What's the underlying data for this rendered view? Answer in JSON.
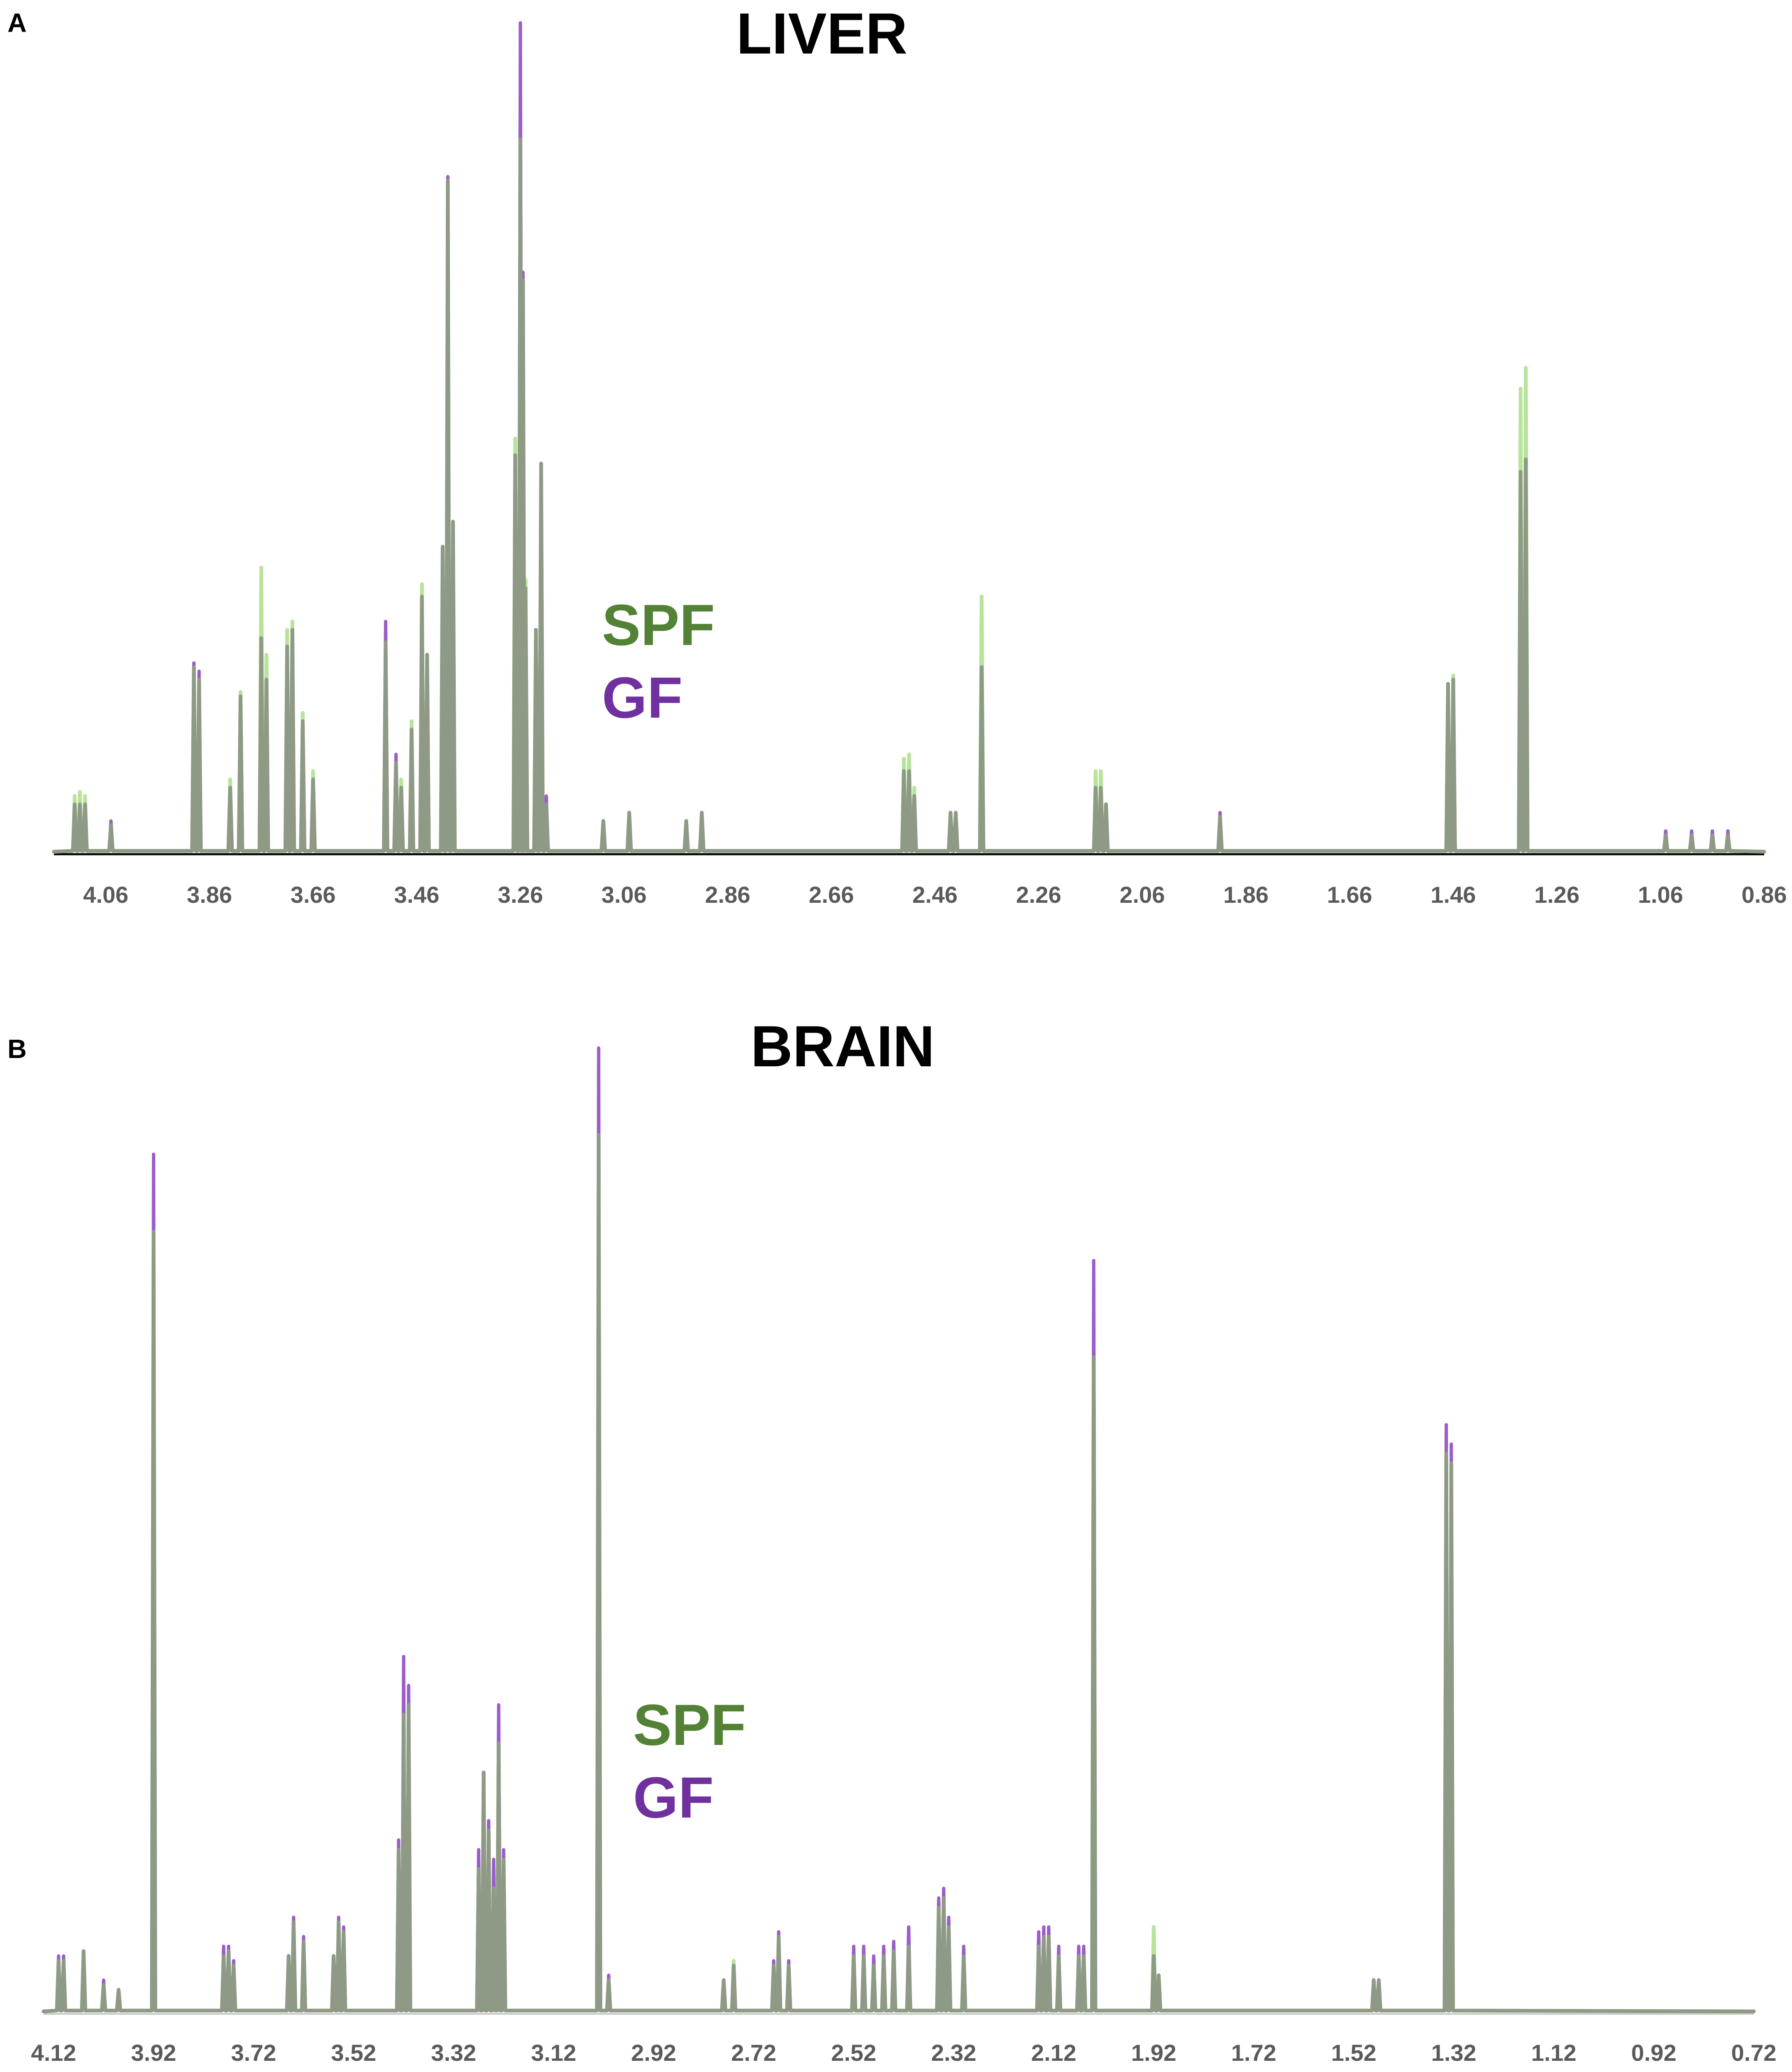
{
  "chart_data": [
    {
      "panel": "A",
      "type": "line",
      "title": "LIVER",
      "xlabel": "",
      "ylabel": "",
      "x_reversed": true,
      "xlim": [
        4.16,
        0.86
      ],
      "ylim": [
        0,
        100
      ],
      "xticks": [
        "4.06",
        "3.86",
        "3.66",
        "3.46",
        "3.26",
        "3.06",
        "2.86",
        "2.66",
        "2.46",
        "2.26",
        "2.06",
        "1.86",
        "1.66",
        "1.46",
        "1.26",
        "1.06",
        "0.86"
      ],
      "grid": false,
      "legend": {
        "placement": "center",
        "entries": [
          "SPF",
          "GF"
        ]
      },
      "series": [
        {
          "name": "SPF",
          "color": "#b7e39a",
          "peaks": [
            {
              "x": 4.12,
              "y": 7
            },
            {
              "x": 4.11,
              "y": 7.5
            },
            {
              "x": 4.1,
              "y": 7
            },
            {
              "x": 4.05,
              "y": 3.5
            },
            {
              "x": 3.89,
              "y": 22.5
            },
            {
              "x": 3.88,
              "y": 21
            },
            {
              "x": 3.82,
              "y": 9
            },
            {
              "x": 3.8,
              "y": 19.5
            },
            {
              "x": 3.76,
              "y": 34.5
            },
            {
              "x": 3.75,
              "y": 24
            },
            {
              "x": 3.71,
              "y": 27
            },
            {
              "x": 3.7,
              "y": 28
            },
            {
              "x": 3.68,
              "y": 17
            },
            {
              "x": 3.66,
              "y": 10
            },
            {
              "x": 3.52,
              "y": 25.5
            },
            {
              "x": 3.5,
              "y": 11
            },
            {
              "x": 3.49,
              "y": 9
            },
            {
              "x": 3.47,
              "y": 16
            },
            {
              "x": 3.45,
              "y": 32.5
            },
            {
              "x": 3.44,
              "y": 24
            },
            {
              "x": 3.41,
              "y": 37
            },
            {
              "x": 3.4,
              "y": 81
            },
            {
              "x": 3.39,
              "y": 40
            },
            {
              "x": 3.27,
              "y": 50
            },
            {
              "x": 3.26,
              "y": 86
            },
            {
              "x": 3.255,
              "y": 69
            },
            {
              "x": 3.25,
              "y": 33
            },
            {
              "x": 3.23,
              "y": 27
            },
            {
              "x": 3.22,
              "y": 47
            },
            {
              "x": 3.21,
              "y": 6
            },
            {
              "x": 3.1,
              "y": 4
            },
            {
              "x": 3.05,
              "y": 5
            },
            {
              "x": 2.94,
              "y": 4
            },
            {
              "x": 2.91,
              "y": 5
            },
            {
              "x": 2.52,
              "y": 11.5
            },
            {
              "x": 2.51,
              "y": 12
            },
            {
              "x": 2.5,
              "y": 8
            },
            {
              "x": 2.43,
              "y": 5
            },
            {
              "x": 2.42,
              "y": 5
            },
            {
              "x": 2.37,
              "y": 31
            },
            {
              "x": 2.15,
              "y": 10
            },
            {
              "x": 2.14,
              "y": 10
            },
            {
              "x": 2.13,
              "y": 6
            },
            {
              "x": 1.91,
              "y": 4.5
            },
            {
              "x": 1.47,
              "y": 20.5
            },
            {
              "x": 1.46,
              "y": 21.5
            },
            {
              "x": 1.33,
              "y": 56
            },
            {
              "x": 1.32,
              "y": 58.5
            },
            {
              "x": 1.05,
              "y": 2.3
            },
            {
              "x": 1.0,
              "y": 2.3
            },
            {
              "x": 0.96,
              "y": 2.3
            },
            {
              "x": 0.93,
              "y": 2.3
            }
          ]
        },
        {
          "name": "GF",
          "color": "#9b5dc8",
          "peaks": [
            {
              "x": 4.12,
              "y": 6
            },
            {
              "x": 4.11,
              "y": 6
            },
            {
              "x": 4.1,
              "y": 6
            },
            {
              "x": 4.05,
              "y": 4
            },
            {
              "x": 3.89,
              "y": 23
            },
            {
              "x": 3.88,
              "y": 22
            },
            {
              "x": 3.82,
              "y": 8
            },
            {
              "x": 3.8,
              "y": 19
            },
            {
              "x": 3.76,
              "y": 26
            },
            {
              "x": 3.75,
              "y": 21
            },
            {
              "x": 3.71,
              "y": 25
            },
            {
              "x": 3.7,
              "y": 27
            },
            {
              "x": 3.68,
              "y": 16
            },
            {
              "x": 3.66,
              "y": 9
            },
            {
              "x": 3.52,
              "y": 28
            },
            {
              "x": 3.5,
              "y": 12
            },
            {
              "x": 3.49,
              "y": 8
            },
            {
              "x": 3.47,
              "y": 15
            },
            {
              "x": 3.45,
              "y": 31
            },
            {
              "x": 3.44,
              "y": 24
            },
            {
              "x": 3.41,
              "y": 37
            },
            {
              "x": 3.4,
              "y": 81.5
            },
            {
              "x": 3.39,
              "y": 40
            },
            {
              "x": 3.27,
              "y": 48
            },
            {
              "x": 3.26,
              "y": 100
            },
            {
              "x": 3.255,
              "y": 70
            },
            {
              "x": 3.25,
              "y": 32
            },
            {
              "x": 3.23,
              "y": 27
            },
            {
              "x": 3.22,
              "y": 47
            },
            {
              "x": 3.21,
              "y": 7
            },
            {
              "x": 3.1,
              "y": 4
            },
            {
              "x": 3.05,
              "y": 5
            },
            {
              "x": 2.94,
              "y": 4
            },
            {
              "x": 2.91,
              "y": 5
            },
            {
              "x": 2.52,
              "y": 10
            },
            {
              "x": 2.51,
              "y": 10
            },
            {
              "x": 2.5,
              "y": 7
            },
            {
              "x": 2.43,
              "y": 5
            },
            {
              "x": 2.42,
              "y": 5
            },
            {
              "x": 2.37,
              "y": 22.5
            },
            {
              "x": 2.15,
              "y": 8
            },
            {
              "x": 2.14,
              "y": 8
            },
            {
              "x": 2.13,
              "y": 6
            },
            {
              "x": 1.91,
              "y": 5
            },
            {
              "x": 1.47,
              "y": 20.5
            },
            {
              "x": 1.46,
              "y": 21
            },
            {
              "x": 1.33,
              "y": 46
            },
            {
              "x": 1.32,
              "y": 47.5
            },
            {
              "x": 1.05,
              "y": 2.8
            },
            {
              "x": 1.0,
              "y": 2.8
            },
            {
              "x": 0.96,
              "y": 2.8
            },
            {
              "x": 0.93,
              "y": 2.8
            }
          ]
        }
      ]
    },
    {
      "panel": "B",
      "type": "line",
      "title": "BRAIN",
      "xlabel": "",
      "ylabel": "",
      "x_reversed": true,
      "xlim": [
        4.14,
        0.72
      ],
      "ylim": [
        0,
        100
      ],
      "xticks": [
        "4.12",
        "3.92",
        "3.72",
        "3.52",
        "3.32",
        "3.12",
        "2.92",
        "2.72",
        "2.52",
        "2.32",
        "2.12",
        "1.92",
        "1.72",
        "1.52",
        "1.32",
        "1.12",
        "0.92",
        "0.72"
      ],
      "grid": false,
      "legend": {
        "placement": "center",
        "entries": [
          "SPF",
          "GF"
        ]
      },
      "series": [
        {
          "name": "SPF",
          "color": "#b7e39a",
          "peaks": [
            {
              "x": 4.11,
              "y": 5.5
            },
            {
              "x": 4.1,
              "y": 5.5
            },
            {
              "x": 4.06,
              "y": 6.5
            },
            {
              "x": 4.02,
              "y": 3
            },
            {
              "x": 3.99,
              "y": 2.5
            },
            {
              "x": 3.92,
              "y": 81
            },
            {
              "x": 3.78,
              "y": 6
            },
            {
              "x": 3.77,
              "y": 6.5
            },
            {
              "x": 3.76,
              "y": 5
            },
            {
              "x": 3.65,
              "y": 6
            },
            {
              "x": 3.64,
              "y": 9.5
            },
            {
              "x": 3.62,
              "y": 7.5
            },
            {
              "x": 3.56,
              "y": 6
            },
            {
              "x": 3.55,
              "y": 9.5
            },
            {
              "x": 3.54,
              "y": 8.5
            },
            {
              "x": 3.43,
              "y": 17
            },
            {
              "x": 3.42,
              "y": 31
            },
            {
              "x": 3.41,
              "y": 32
            },
            {
              "x": 3.27,
              "y": 15
            },
            {
              "x": 3.26,
              "y": 25
            },
            {
              "x": 3.25,
              "y": 19
            },
            {
              "x": 3.24,
              "y": 13
            },
            {
              "x": 3.23,
              "y": 28
            },
            {
              "x": 3.22,
              "y": 16
            },
            {
              "x": 3.03,
              "y": 91
            },
            {
              "x": 3.01,
              "y": 3.5
            },
            {
              "x": 2.78,
              "y": 3.5
            },
            {
              "x": 2.76,
              "y": 5.5
            },
            {
              "x": 2.68,
              "y": 5
            },
            {
              "x": 2.67,
              "y": 8
            },
            {
              "x": 2.65,
              "y": 5
            },
            {
              "x": 2.52,
              "y": 6
            },
            {
              "x": 2.5,
              "y": 6
            },
            {
              "x": 2.48,
              "y": 5
            },
            {
              "x": 2.46,
              "y": 6
            },
            {
              "x": 2.44,
              "y": 6.5
            },
            {
              "x": 2.41,
              "y": 7
            },
            {
              "x": 2.35,
              "y": 11
            },
            {
              "x": 2.34,
              "y": 12
            },
            {
              "x": 2.33,
              "y": 9
            },
            {
              "x": 2.3,
              "y": 6
            },
            {
              "x": 2.15,
              "y": 7
            },
            {
              "x": 2.14,
              "y": 8
            },
            {
              "x": 2.13,
              "y": 8
            },
            {
              "x": 2.11,
              "y": 6
            },
            {
              "x": 2.07,
              "y": 6
            },
            {
              "x": 2.06,
              "y": 6
            },
            {
              "x": 2.04,
              "y": 68
            },
            {
              "x": 1.92,
              "y": 9
            },
            {
              "x": 1.91,
              "y": 4
            },
            {
              "x": 1.48,
              "y": 3.5
            },
            {
              "x": 1.47,
              "y": 3.5
            },
            {
              "x": 1.335,
              "y": 58
            },
            {
              "x": 1.325,
              "y": 57
            }
          ]
        },
        {
          "name": "GF",
          "color": "#9b5dc8",
          "peaks": [
            {
              "x": 4.11,
              "y": 6
            },
            {
              "x": 4.1,
              "y": 6
            },
            {
              "x": 4.06,
              "y": 6.5
            },
            {
              "x": 4.02,
              "y": 3.5
            },
            {
              "x": 3.99,
              "y": 2.5
            },
            {
              "x": 3.92,
              "y": 89
            },
            {
              "x": 3.78,
              "y": 7
            },
            {
              "x": 3.77,
              "y": 7
            },
            {
              "x": 3.76,
              "y": 5.5
            },
            {
              "x": 3.65,
              "y": 6
            },
            {
              "x": 3.64,
              "y": 10
            },
            {
              "x": 3.62,
              "y": 8
            },
            {
              "x": 3.56,
              "y": 6
            },
            {
              "x": 3.55,
              "y": 10
            },
            {
              "x": 3.54,
              "y": 9
            },
            {
              "x": 3.43,
              "y": 18
            },
            {
              "x": 3.42,
              "y": 37
            },
            {
              "x": 3.41,
              "y": 34
            },
            {
              "x": 3.27,
              "y": 17
            },
            {
              "x": 3.26,
              "y": 25
            },
            {
              "x": 3.25,
              "y": 20
            },
            {
              "x": 3.24,
              "y": 16
            },
            {
              "x": 3.23,
              "y": 32
            },
            {
              "x": 3.22,
              "y": 17
            },
            {
              "x": 3.03,
              "y": 100
            },
            {
              "x": 3.01,
              "y": 4
            },
            {
              "x": 2.78,
              "y": 3.5
            },
            {
              "x": 2.76,
              "y": 5
            },
            {
              "x": 2.68,
              "y": 5.5
            },
            {
              "x": 2.67,
              "y": 8.5
            },
            {
              "x": 2.65,
              "y": 5.5
            },
            {
              "x": 2.52,
              "y": 7
            },
            {
              "x": 2.5,
              "y": 7
            },
            {
              "x": 2.48,
              "y": 6
            },
            {
              "x": 2.46,
              "y": 7
            },
            {
              "x": 2.44,
              "y": 7.5
            },
            {
              "x": 2.41,
              "y": 9
            },
            {
              "x": 2.35,
              "y": 12
            },
            {
              "x": 2.34,
              "y": 13
            },
            {
              "x": 2.33,
              "y": 10
            },
            {
              "x": 2.3,
              "y": 7
            },
            {
              "x": 2.15,
              "y": 8.5
            },
            {
              "x": 2.14,
              "y": 9
            },
            {
              "x": 2.13,
              "y": 9
            },
            {
              "x": 2.11,
              "y": 7
            },
            {
              "x": 2.07,
              "y": 7
            },
            {
              "x": 2.06,
              "y": 7
            },
            {
              "x": 2.04,
              "y": 78
            },
            {
              "x": 1.92,
              "y": 6
            },
            {
              "x": 1.91,
              "y": 4
            },
            {
              "x": 1.48,
              "y": 3.5
            },
            {
              "x": 1.47,
              "y": 3.5
            },
            {
              "x": 1.335,
              "y": 61
            },
            {
              "x": 1.325,
              "y": 59
            }
          ]
        }
      ]
    }
  ],
  "panel_a": {
    "letter": "A",
    "title": "LIVER",
    "legend_spf": "SPF",
    "legend_gf": "GF"
  },
  "panel_b": {
    "letter": "B",
    "title": "BRAIN",
    "legend_spf": "SPF",
    "legend_gf": "GF"
  },
  "colors": {
    "spf_text": "#538135",
    "gf_text": "#7030a0",
    "overlap": "#8e9a86",
    "baseline": "#000000"
  }
}
